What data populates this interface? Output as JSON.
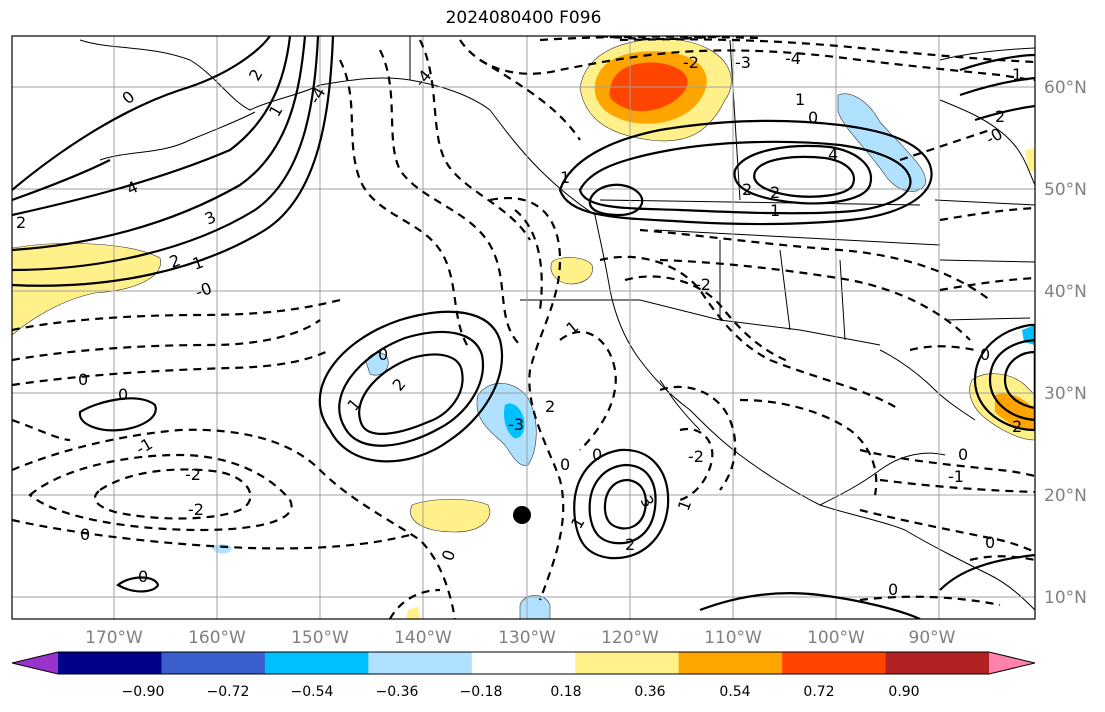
{
  "title": "2024080400 F096",
  "map": {
    "lon_ticks": [
      "170°W",
      "160°W",
      "150°W",
      "140°W",
      "130°W",
      "120°W",
      "110°W",
      "100°W",
      "90°W"
    ],
    "lat_ticks": [
      "60°N",
      "50°N",
      "40°N",
      "30°N",
      "20°N",
      "10°N"
    ],
    "grid": true
  },
  "contour_labels": [
    "0",
    "1",
    "2",
    "3",
    "4",
    "-1",
    "-2",
    "-3",
    "-4",
    "-0"
  ],
  "colorbar": {
    "ticks": [
      "−0.90",
      "−0.72",
      "−0.54",
      "−0.36",
      "−0.18",
      "0.18",
      "0.36",
      "0.54",
      "0.72",
      "0.90"
    ],
    "colors": [
      "#9a32cd",
      "#00008b",
      "#3a5fcd",
      "#00bfff",
      "#b0e2ff",
      "#ffffff",
      "#fff08a",
      "#ffa500",
      "#ff4500",
      "#b22222",
      "#ff82ab"
    ]
  },
  "marker_label": ""
}
